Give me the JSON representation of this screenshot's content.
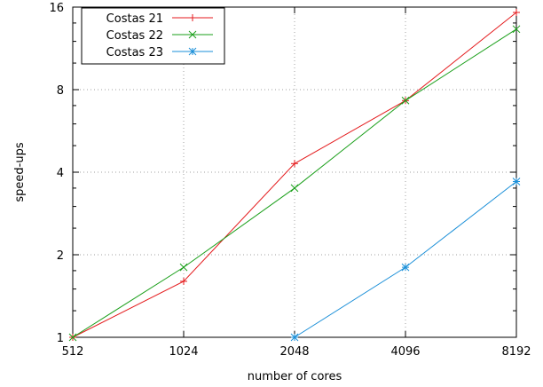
{
  "chart_data": {
    "type": "line",
    "xlabel": "number of cores",
    "ylabel": "speed-ups",
    "x_scale": "log2",
    "y_scale": "log2",
    "xlim": [
      512,
      8192
    ],
    "ylim": [
      1,
      16
    ],
    "x_ticks": [
      512,
      1024,
      2048,
      4096,
      8192
    ],
    "y_ticks": [
      1,
      2,
      4,
      8,
      16
    ],
    "x_tick_labels": [
      "512",
      "1024",
      "2048",
      "4096",
      "8192"
    ],
    "y_tick_labels": [
      "1",
      "2",
      "4",
      "8",
      "16"
    ],
    "grid": true,
    "legend_position": "top-left",
    "series": [
      {
        "name": "Costas 21",
        "color": "#e41a1c",
        "marker": "plus",
        "x": [
          512,
          1024,
          2048,
          4096,
          8192
        ],
        "y": [
          1.0,
          1.6,
          4.3,
          7.3,
          15.3
        ]
      },
      {
        "name": "Costas 22",
        "color": "#1a9f1a",
        "marker": "cross",
        "x": [
          512,
          1024,
          2048,
          4096,
          8192
        ],
        "y": [
          1.0,
          1.8,
          3.5,
          7.3,
          13.3
        ]
      },
      {
        "name": "Costas 23",
        "color": "#1a8fd8",
        "marker": "star",
        "x": [
          2048,
          4096,
          8192
        ],
        "y": [
          1.0,
          1.8,
          3.7
        ]
      }
    ]
  }
}
